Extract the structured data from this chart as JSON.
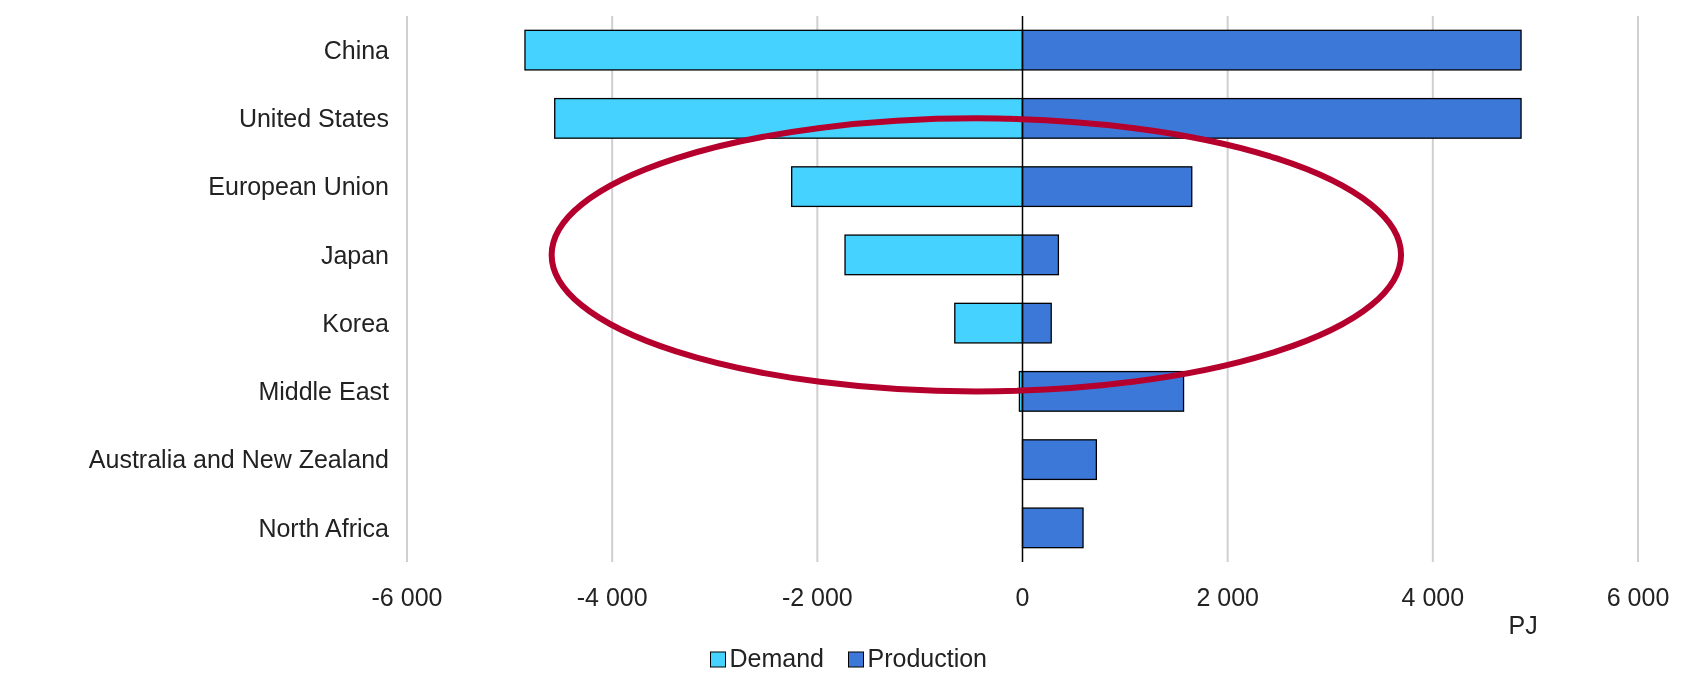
{
  "chart_data": {
    "type": "bar",
    "orientation": "horizontal",
    "stacked": true,
    "categories": [
      "China",
      "United States",
      "European Union",
      "Japan",
      "Korea",
      "Middle East",
      "Australia and New Zealand",
      "North Africa"
    ],
    "series": [
      {
        "name": "Demand",
        "color": "#45d2ff",
        "values": [
          -4850,
          -4560,
          -2250,
          -1730,
          -660,
          -30,
          null,
          null
        ]
      },
      {
        "name": "Production",
        "color": "#3c78d8",
        "values": [
          4860,
          4860,
          1650,
          350,
          280,
          1570,
          720,
          590
        ]
      }
    ],
    "xlim": [
      -6000,
      6000
    ],
    "xticks": [
      {
        "value": -6000,
        "label": "-6 000"
      },
      {
        "value": -4000,
        "label": "-4 000"
      },
      {
        "value": -2000,
        "label": "-2 000"
      },
      0,
      {
        "value": 2000,
        "label": "2 000"
      },
      {
        "value": 4000,
        "label": "4 000"
      },
      {
        "value": 6000,
        "label": "6 000"
      }
    ],
    "xlabel": "PJ",
    "grid": "x",
    "legend": "bottom"
  }
}
